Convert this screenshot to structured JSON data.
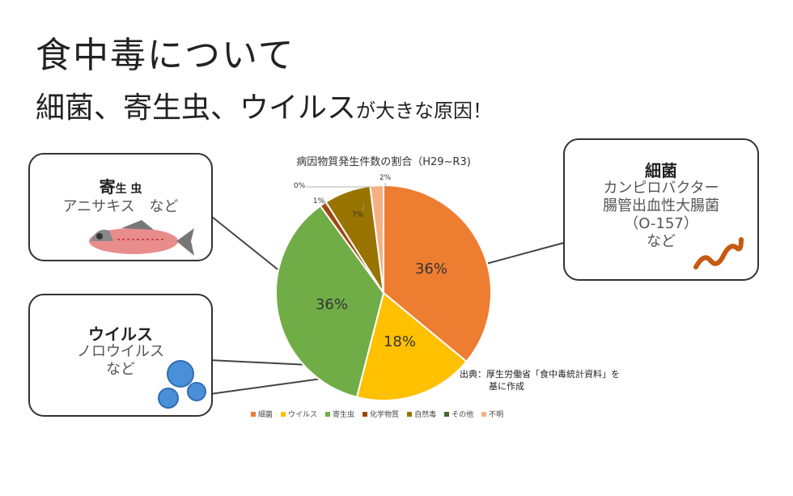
{
  "page": {
    "title": "食中毒について",
    "subtitle_main": "細菌、寄生虫、ウイルス",
    "subtitle_tail": "が大きな原因！"
  },
  "callouts": {
    "parasite": {
      "head_a": "寄",
      "head_b": "生 虫",
      "body": "アニサキス　など"
    },
    "virus": {
      "head": "ウイルス",
      "body1": "ノロウイルス",
      "body2": "など"
    },
    "bacteria": {
      "head": "細菌",
      "body1": "カンピロバクター",
      "body2": "腸管出血性大腸菌",
      "body3": "（O-157）",
      "body4": "など"
    }
  },
  "source": {
    "line1": "出典：厚生労働省「食中毒統計資料」を",
    "line2": "基に作成"
  },
  "chart_data": {
    "type": "pie",
    "title": "病因物質発生件数の割合（H29~R3)",
    "categories": [
      "細菌",
      "ウイルス",
      "寄生虫",
      "化学物質",
      "自然毒",
      "その他",
      "不明"
    ],
    "values": [
      36,
      18,
      36,
      1,
      7,
      0,
      2
    ],
    "labels": [
      "36%",
      "18%",
      "36%",
      "1%",
      "7%",
      "0%",
      "2%"
    ],
    "colors": [
      "#ED7D31",
      "#FFC000",
      "#70AD47",
      "#9E480E",
      "#997300",
      "#43682B",
      "#F4B183"
    ],
    "legend_position": "bottom"
  }
}
